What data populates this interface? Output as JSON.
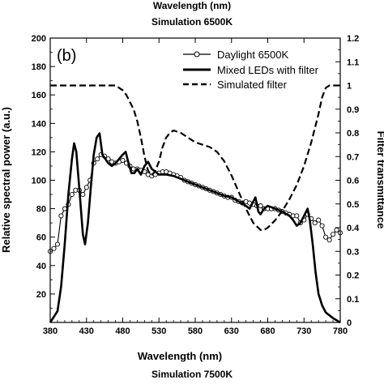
{
  "header": {
    "cut_label": "Wavelength (nm)",
    "title_top": "Simulation 6500K",
    "title_bottom": "Simulation 7500K"
  },
  "chart_data": {
    "type": "line",
    "panel_label": "(b)",
    "xlabel": "Wavelength (nm)",
    "ylabel": "Relative spectral power (a.u.)",
    "y2label": "Filter transmittance",
    "xlim": [
      380,
      780
    ],
    "ylim": [
      0,
      200
    ],
    "y2lim": [
      0,
      1.2
    ],
    "xticks": [
      380,
      430,
      480,
      530,
      580,
      630,
      680,
      730,
      780
    ],
    "yticks": [
      20,
      40,
      60,
      80,
      100,
      120,
      140,
      160,
      180,
      200
    ],
    "y2ticks": [
      "0",
      "0.1",
      "0.2",
      "0.3",
      "0.4",
      "0.5",
      "0.6",
      "0.7",
      "0.8",
      "0.9",
      "1",
      "1.1",
      "1.2"
    ],
    "legend_position": "top-right",
    "series": [
      {
        "name": "Daylight 6500K",
        "axis": "left",
        "style": "line-circle",
        "x": [
          380,
          385,
          390,
          395,
          400,
          405,
          410,
          415,
          420,
          425,
          430,
          435,
          440,
          445,
          450,
          455,
          460,
          465,
          470,
          475,
          480,
          485,
          490,
          495,
          500,
          505,
          510,
          515,
          520,
          525,
          530,
          535,
          540,
          545,
          550,
          555,
          560,
          565,
          570,
          575,
          580,
          585,
          590,
          595,
          600,
          605,
          610,
          615,
          620,
          625,
          630,
          635,
          640,
          645,
          650,
          655,
          660,
          665,
          670,
          675,
          680,
          685,
          690,
          695,
          700,
          705,
          710,
          715,
          720,
          725,
          730,
          735,
          740,
          745,
          750,
          755,
          760,
          765,
          770,
          775,
          780
        ],
        "y": [
          50,
          52,
          55,
          75,
          80,
          83,
          90,
          93,
          93,
          90,
          95,
          100,
          112,
          115,
          118,
          117,
          115,
          113,
          112,
          113,
          114,
          112,
          110,
          108,
          108,
          107,
          106,
          104,
          103,
          104,
          105,
          106,
          106,
          105,
          104,
          103,
          102,
          100,
          99,
          98,
          97,
          96,
          95,
          94,
          93,
          92,
          91,
          90,
          89,
          88,
          88,
          86,
          85,
          84,
          85,
          84,
          83,
          82,
          82,
          80,
          80,
          80,
          80,
          79,
          78,
          77,
          76,
          75,
          75,
          70,
          72,
          76,
          73,
          70,
          72,
          68,
          60,
          58,
          62,
          65,
          63
        ]
      },
      {
        "name": "Mixed LEDs with filter",
        "axis": "left",
        "style": "thick-line",
        "x": [
          380,
          390,
          395,
          400,
          405,
          410,
          413,
          416,
          420,
          425,
          428,
          432,
          436,
          440,
          444,
          448,
          452,
          456,
          460,
          465,
          470,
          475,
          480,
          484,
          488,
          492,
          496,
          500,
          505,
          510,
          515,
          520,
          525,
          530,
          540,
          550,
          560,
          570,
          580,
          590,
          600,
          610,
          620,
          630,
          640,
          650,
          655,
          660,
          663,
          667,
          670,
          675,
          680,
          690,
          700,
          710,
          715,
          720,
          725,
          730,
          735,
          738,
          742,
          746,
          750,
          755,
          760,
          770,
          780
        ],
        "y": [
          0,
          8,
          25,
          55,
          90,
          115,
          126,
          120,
          95,
          62,
          55,
          70,
          95,
          118,
          130,
          133,
          118,
          115,
          112,
          110,
          112,
          115,
          118,
          120,
          112,
          105,
          105,
          108,
          104,
          110,
          113,
          108,
          106,
          104,
          104,
          103,
          101,
          99,
          97,
          95,
          93,
          91,
          89,
          88,
          85,
          82,
          80,
          85,
          88,
          78,
          76,
          80,
          82,
          80,
          78,
          75,
          72,
          68,
          70,
          75,
          80,
          72,
          55,
          35,
          20,
          12,
          7,
          3,
          0
        ]
      },
      {
        "name": "Simulated filter",
        "axis": "right",
        "style": "dashed",
        "x": [
          380,
          400,
          420,
          440,
          460,
          470,
          475,
          480,
          485,
          490,
          495,
          500,
          505,
          510,
          515,
          520,
          525,
          530,
          535,
          540,
          545,
          550,
          560,
          570,
          580,
          590,
          600,
          610,
          620,
          630,
          640,
          650,
          660,
          670,
          675,
          680,
          690,
          700,
          710,
          720,
          730,
          740,
          750,
          755,
          760,
          765,
          770,
          780
        ],
        "y": [
          1.0,
          1.0,
          1.0,
          1.0,
          1.0,
          1.0,
          0.99,
          0.98,
          0.96,
          0.93,
          0.9,
          0.85,
          0.78,
          0.7,
          0.64,
          0.62,
          0.64,
          0.68,
          0.74,
          0.78,
          0.8,
          0.81,
          0.8,
          0.78,
          0.76,
          0.75,
          0.74,
          0.72,
          0.68,
          0.62,
          0.55,
          0.48,
          0.42,
          0.39,
          0.39,
          0.4,
          0.43,
          0.47,
          0.52,
          0.58,
          0.66,
          0.76,
          0.88,
          0.95,
          0.99,
          1.0,
          1.0,
          1.0
        ]
      }
    ]
  }
}
